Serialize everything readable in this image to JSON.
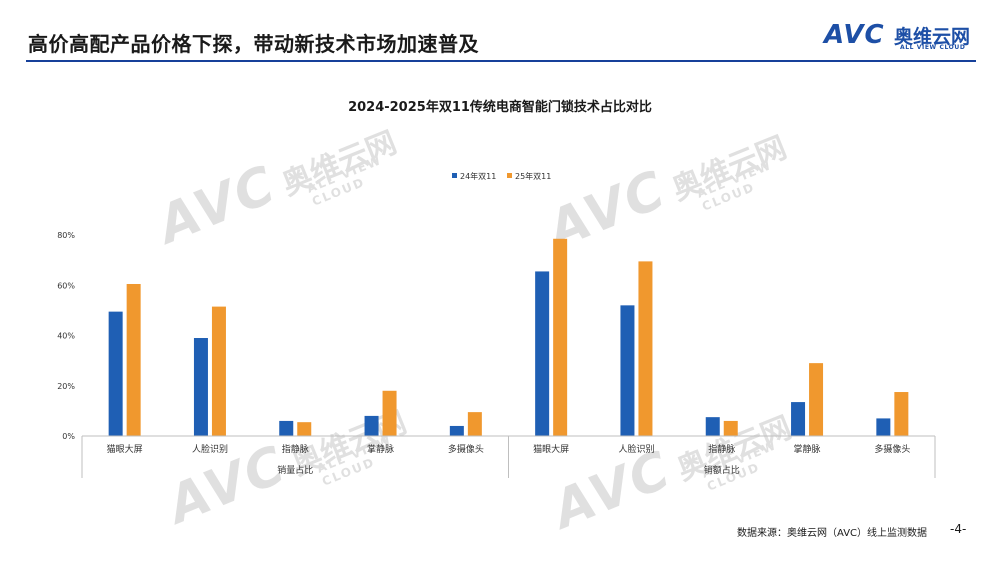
{
  "header": {
    "title": "高价高配产品价格下探，带动新技术市场加速普及"
  },
  "logo": {
    "mark": "AVC",
    "name_cn": "奥维云网",
    "name_en": "ALL VIEW CLOUD"
  },
  "footer": {
    "source": "数据来源：奥维云网（AVC）线上监测数据",
    "page": "-4-"
  },
  "colors": {
    "series_2024": "#1f5fb4",
    "series_2025": "#f0982e",
    "header_rule": "#16409a"
  },
  "chart_data": {
    "type": "bar",
    "title": "2024-2025年双11传统电商智能门锁技术占比对比",
    "xlabel": "",
    "ylabel": "",
    "ylim": [
      0,
      80
    ],
    "yticks": [
      "0%",
      "20%",
      "40%",
      "60%",
      "80%"
    ],
    "ytick_values": [
      0,
      20,
      40,
      60,
      80
    ],
    "legend_position": "top-center",
    "grid": false,
    "groups": [
      {
        "label": "销量占比",
        "categories": [
          "猫眼大屏",
          "人脸识别",
          "指静脉",
          "掌静脉",
          "多摄像头"
        ]
      },
      {
        "label": "销额占比",
        "categories": [
          "猫眼大屏",
          "人脸识别",
          "指静脉",
          "掌静脉",
          "多摄像头"
        ]
      }
    ],
    "series": [
      {
        "name": "24年双11",
        "values": [
          49.5,
          39,
          6,
          8,
          4,
          65.5,
          52,
          7.5,
          13.5,
          7
        ]
      },
      {
        "name": "25年双11",
        "values": [
          60.5,
          51.5,
          5.5,
          18,
          9.5,
          78.5,
          69.5,
          6,
          29,
          17.5
        ]
      }
    ]
  }
}
